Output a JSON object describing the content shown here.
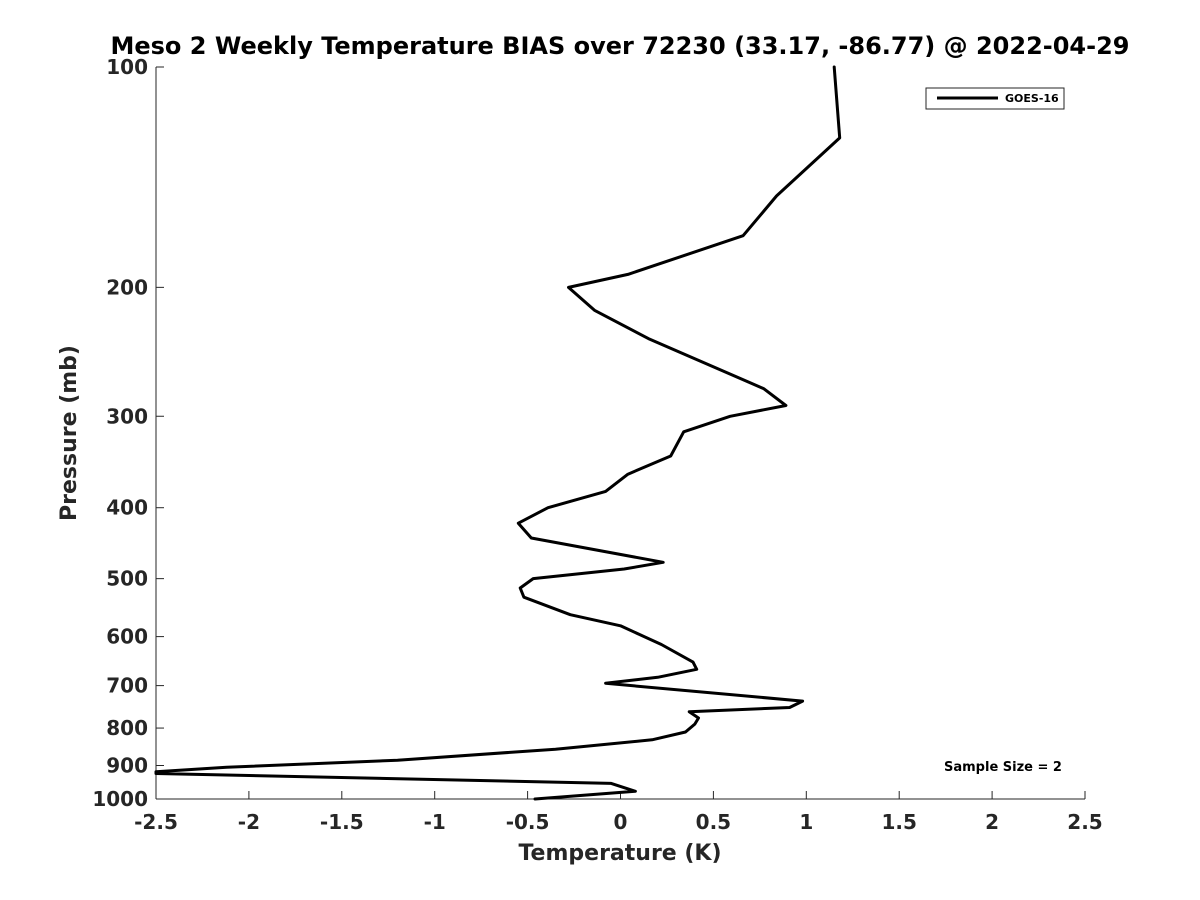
{
  "chart_data": {
    "type": "line",
    "title": "Meso 2 Weekly Temperature BIAS over 72230 (33.17, -86.77) @ 2022-04-29",
    "xlabel": "Temperature (K)",
    "ylabel": "Pressure (mb)",
    "xlim": [
      -2.5,
      2.5
    ],
    "ylim": [
      1000,
      100
    ],
    "yscale": "log",
    "y_reversed": true,
    "grid": false,
    "legend_position": "top-right",
    "x_ticks": [
      -2.5,
      -2,
      -1.5,
      -1,
      -0.5,
      0,
      0.5,
      1,
      1.5,
      2,
      2.5
    ],
    "x_tick_labels": [
      "-2.5",
      "-2",
      "-1.5",
      "-1",
      "-0.5",
      "0",
      "0.5",
      "1",
      "1.5",
      "2",
      "2.5"
    ],
    "y_ticks": [
      100,
      200,
      300,
      400,
      500,
      600,
      700,
      800,
      900,
      1000
    ],
    "y_tick_labels": [
      "100",
      "200",
      "300",
      "400",
      "500",
      "600",
      "700",
      "800",
      "900",
      "1000"
    ],
    "annotation": "Sample Size = 2",
    "series": [
      {
        "name": "GOES-16",
        "color": "#000000",
        "points": [
          {
            "x": 1.15,
            "y": 100
          },
          {
            "x": 1.18,
            "y": 125
          },
          {
            "x": 0.84,
            "y": 150
          },
          {
            "x": 0.66,
            "y": 170
          },
          {
            "x": 0.04,
            "y": 192
          },
          {
            "x": -0.28,
            "y": 200
          },
          {
            "x": -0.14,
            "y": 215
          },
          {
            "x": 0.15,
            "y": 235
          },
          {
            "x": 0.77,
            "y": 275
          },
          {
            "x": 0.89,
            "y": 290
          },
          {
            "x": 0.59,
            "y": 300
          },
          {
            "x": 0.34,
            "y": 315
          },
          {
            "x": 0.27,
            "y": 340
          },
          {
            "x": 0.04,
            "y": 360
          },
          {
            "x": -0.08,
            "y": 380
          },
          {
            "x": -0.39,
            "y": 400
          },
          {
            "x": -0.55,
            "y": 420
          },
          {
            "x": -0.48,
            "y": 440
          },
          {
            "x": 0.23,
            "y": 475
          },
          {
            "x": 0.02,
            "y": 485
          },
          {
            "x": -0.47,
            "y": 500
          },
          {
            "x": -0.54,
            "y": 515
          },
          {
            "x": -0.52,
            "y": 530
          },
          {
            "x": -0.27,
            "y": 560
          },
          {
            "x": 0.0,
            "y": 580
          },
          {
            "x": 0.22,
            "y": 615
          },
          {
            "x": 0.39,
            "y": 650
          },
          {
            "x": 0.41,
            "y": 665
          },
          {
            "x": 0.2,
            "y": 682
          },
          {
            "x": -0.08,
            "y": 695
          },
          {
            "x": 0.98,
            "y": 735
          },
          {
            "x": 0.91,
            "y": 750
          },
          {
            "x": 0.37,
            "y": 760
          },
          {
            "x": 0.42,
            "y": 775
          },
          {
            "x": 0.4,
            "y": 790
          },
          {
            "x": 0.35,
            "y": 810
          },
          {
            "x": 0.17,
            "y": 830
          },
          {
            "x": -0.35,
            "y": 855
          },
          {
            "x": -1.2,
            "y": 885
          },
          {
            "x": -2.12,
            "y": 905
          },
          {
            "x": -2.5,
            "y": 918
          },
          {
            "x": -2.5,
            "y": 923
          },
          {
            "x": -0.05,
            "y": 952
          },
          {
            "x": 0.08,
            "y": 976
          },
          {
            "x": -0.46,
            "y": 1000
          }
        ]
      }
    ]
  }
}
